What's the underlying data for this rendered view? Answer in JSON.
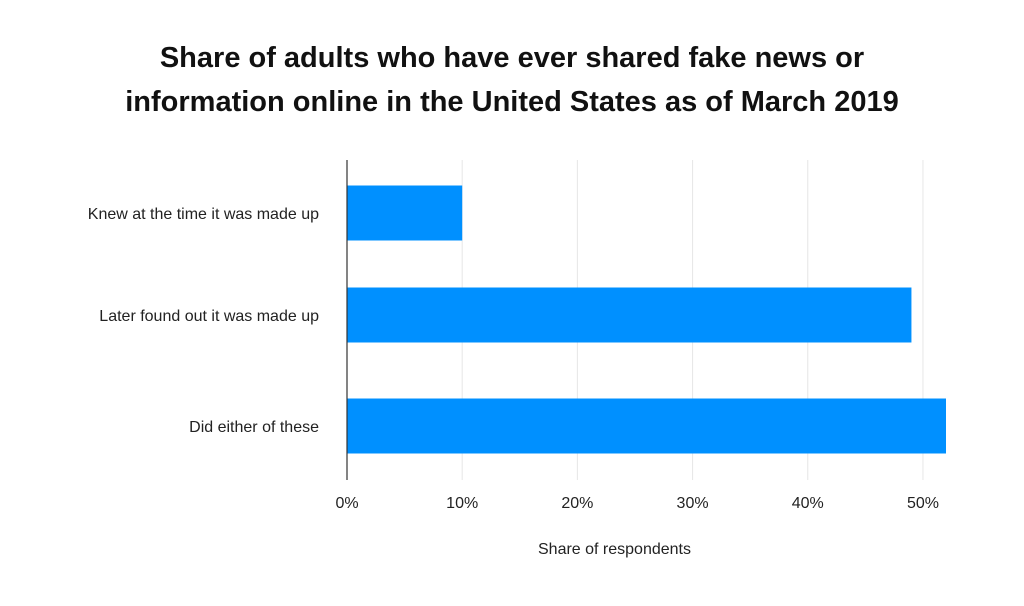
{
  "chart_data": {
    "type": "bar",
    "orientation": "horizontal",
    "title": "Share of adults who have ever shared fake news or\ninformation online in the United States as of March 2019",
    "xlabel": "Share of respondents",
    "ylabel": "",
    "categories": [
      "Knew at the time it was made up",
      "Later found out it was made up",
      "Did either of these"
    ],
    "values": [
      10,
      49,
      52
    ],
    "value_unit": "%",
    "xlim": [
      0,
      52
    ],
    "x_ticks": [
      0,
      10,
      20,
      30,
      40,
      50
    ],
    "x_tick_labels": [
      "0%",
      "10%",
      "20%",
      "30%",
      "40%",
      "50%"
    ],
    "grid": "vertical",
    "bar_color": "#0090FF",
    "grid_color": "#E6E6E6",
    "axis_color": "#333333"
  }
}
